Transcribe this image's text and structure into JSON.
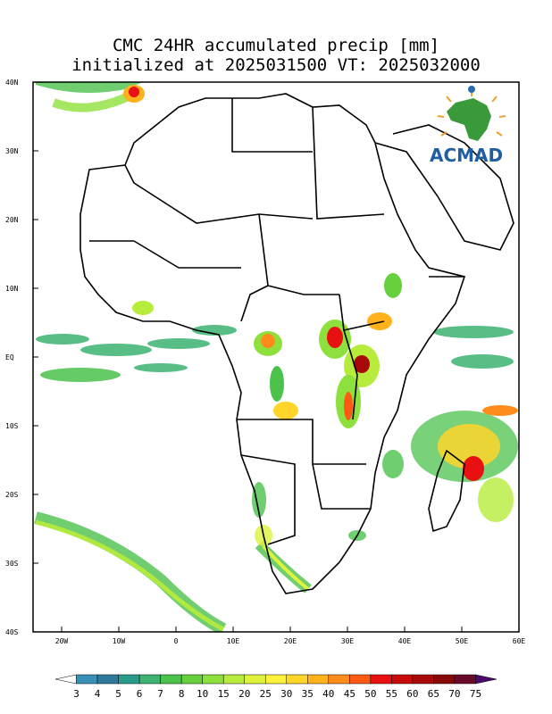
{
  "title": {
    "line1": "CMC 24HR accumulated precip [mm]",
    "line2": "initialized at 2025031500 VT: 2025032000"
  },
  "logo": {
    "text": "ACMAD",
    "icon": "africa-map-sun-icon",
    "text_color": "#1f5fa0"
  },
  "map": {
    "region": "Africa",
    "lat_range": [
      -40,
      40
    ],
    "lon_range": [
      -25,
      60
    ],
    "lat_labels": [
      "40N",
      "30N",
      "20N",
      "10N",
      "EQ",
      "10S",
      "20S",
      "30S",
      "40S"
    ],
    "lon_labels": [
      "20W",
      "10W",
      "0",
      "10E",
      "20E",
      "30E",
      "40E",
      "50E",
      "60E"
    ],
    "precip_units": "mm"
  },
  "colorbar": {
    "labels": [
      "3",
      "4",
      "5",
      "6",
      "7",
      "8",
      "10",
      "15",
      "20",
      "25",
      "30",
      "35",
      "40",
      "45",
      "50",
      "55",
      "60",
      "65",
      "70",
      "75"
    ],
    "colors": [
      "#ffffff",
      "#3a8fb7",
      "#2e7a9a",
      "#2a9a8a",
      "#3cb371",
      "#4cc24c",
      "#66d13c",
      "#8ee03c",
      "#b8ec3c",
      "#dff23c",
      "#fff23c",
      "#ffd52a",
      "#ffb21e",
      "#ff8c1a",
      "#ff5a14",
      "#e81010",
      "#c80a0a",
      "#a80808",
      "#880808",
      "#6a0a2a",
      "#4a0a6a"
    ]
  }
}
